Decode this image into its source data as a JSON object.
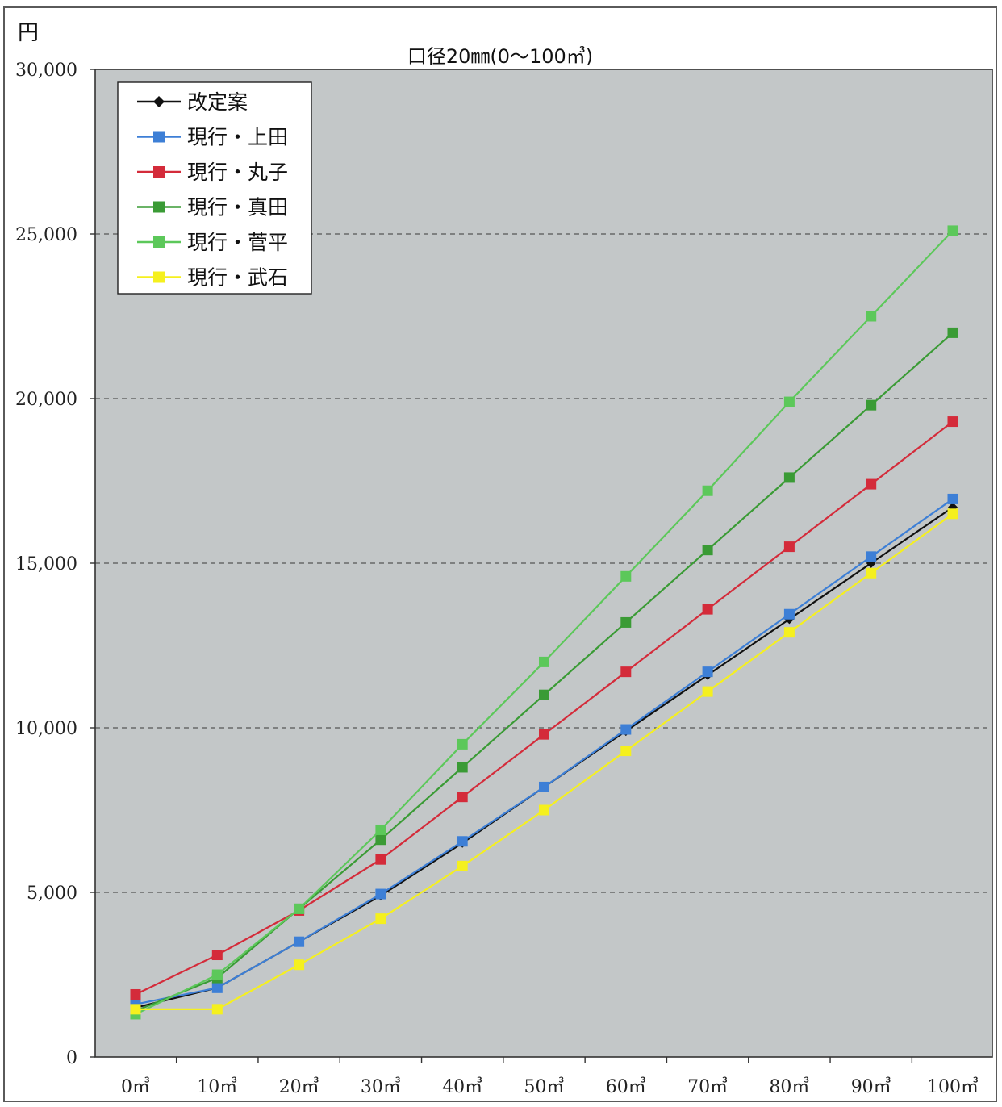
{
  "unit_label": "円",
  "chart_data": {
    "type": "line",
    "title": "口径20㎜(0〜100㎥)",
    "xlabel": "",
    "ylabel": "円",
    "categories": [
      "0㎥",
      "10㎥",
      "20㎥",
      "30㎥",
      "40㎥",
      "50㎥",
      "60㎥",
      "70㎥",
      "80㎥",
      "90㎥",
      "100㎥"
    ],
    "ylim": [
      0,
      30000
    ],
    "yticks": [
      0,
      5000,
      10000,
      15000,
      20000,
      25000,
      30000
    ],
    "ytick_labels": [
      "0",
      "5,000",
      "10,000",
      "15,000",
      "20,000",
      "25,000",
      "30,000"
    ],
    "grid": "horizontal dashed",
    "legend_position": "top-left",
    "series": [
      {
        "name": "改定案",
        "color": "#111111",
        "marker": "diamond",
        "values": [
          1500,
          2100,
          3500,
          4900,
          6500,
          8200,
          9900,
          11600,
          13300,
          15000,
          16700
        ]
      },
      {
        "name": "現行・上田",
        "color": "#3d7fd6",
        "marker": "square",
        "values": [
          1600,
          2100,
          3500,
          4950,
          6550,
          8200,
          9950,
          11700,
          13450,
          15200,
          16950
        ]
      },
      {
        "name": "現行・丸子",
        "color": "#d42b3a",
        "marker": "square",
        "values": [
          1900,
          3100,
          4450,
          6000,
          7900,
          9800,
          11700,
          13600,
          15500,
          17400,
          19300
        ]
      },
      {
        "name": "現行・真田",
        "color": "#3a9b35",
        "marker": "square",
        "values": [
          1400,
          2400,
          4500,
          6600,
          8800,
          11000,
          13200,
          15400,
          17600,
          19800,
          22000
        ]
      },
      {
        "name": "現行・菅平",
        "color": "#5cc85a",
        "marker": "square",
        "values": [
          1300,
          2500,
          4500,
          6900,
          9500,
          12000,
          14600,
          17200,
          19900,
          22500,
          25100
        ]
      },
      {
        "name": "現行・武石",
        "color": "#f5f01e",
        "marker": "square",
        "values": [
          1450,
          1450,
          2800,
          4200,
          5800,
          7500,
          9300,
          11100,
          12900,
          14700,
          16500
        ]
      }
    ]
  }
}
